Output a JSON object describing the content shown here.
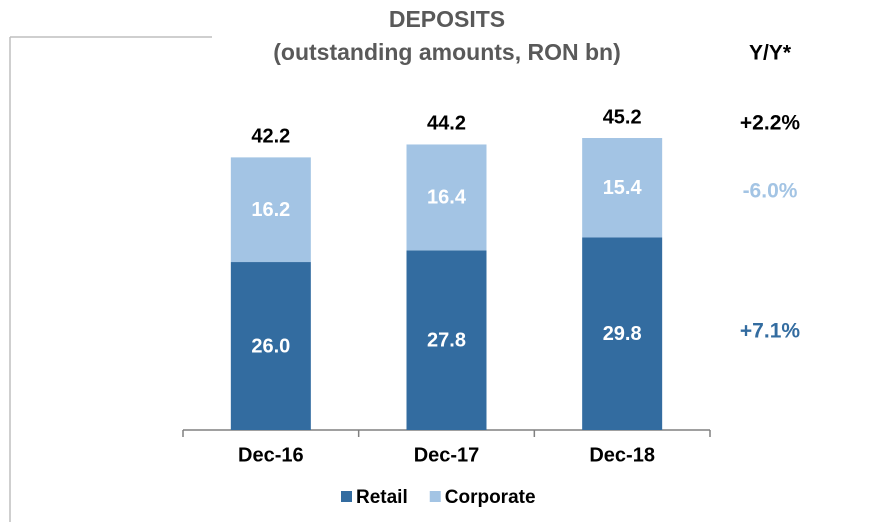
{
  "chart_data": {
    "type": "bar",
    "stacked": true,
    "title": "DEPOSITS",
    "subtitle": "(outstanding amounts, RON bn)",
    "categories": [
      "Dec-16",
      "Dec-17",
      "Dec-18"
    ],
    "series": [
      {
        "name": "Retail",
        "color": "#336ca0",
        "values": [
          26.0,
          27.8,
          29.8
        ],
        "value_labels": [
          "26.0",
          "27.8",
          "29.8"
        ]
      },
      {
        "name": "Corporate",
        "color": "#a3c4e4",
        "values": [
          16.2,
          16.4,
          15.4
        ],
        "value_labels": [
          "16.2",
          "16.4",
          "15.4"
        ]
      }
    ],
    "totals": [
      42.2,
      44.2,
      45.2
    ],
    "legend": "bottom",
    "annotations": [
      {
        "text": "Y/Y*",
        "color": "#000000"
      },
      {
        "text": "+2.2%",
        "color": "#000000"
      },
      {
        "text": "-6.0%",
        "color": "#a3c4e4"
      },
      {
        "text": "+7.1%",
        "color": "#336ca0"
      }
    ]
  }
}
